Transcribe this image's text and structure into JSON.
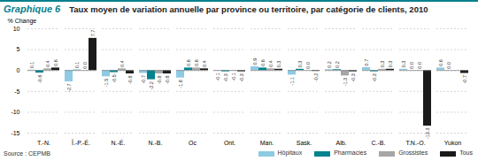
{
  "chart_data": {
    "type": "bar",
    "label": "Graphique 6",
    "title": "Taux moyen de variation annuelle par province ou territoire, par catégorie de clients, 2010",
    "y_label": "% Change",
    "source": "Source : CEPMB",
    "categories": [
      "T.-N.",
      "Î.-P.-É.",
      "N.-É.",
      "N.-B.",
      "Qc",
      "Ont.",
      "Man.",
      "Sask.",
      "Alb.",
      "C.-B.",
      "T.N.-O.",
      "Yukon"
    ],
    "series": [
      {
        "name": "Hôpitaux",
        "color": "#8ecae3",
        "values": [
          0.1,
          -2.7,
          -1.5,
          -0.7,
          -1.8,
          -0.1,
          0.9,
          -1.1,
          0.2,
          0.7,
          0.3,
          0.6
        ],
        "value_labels": [
          "0.1",
          "-2.7",
          "-1.5",
          "-0.7",
          "-1.8",
          "-0.1",
          "0.9",
          "-1.1",
          "0.2",
          "0.7",
          "0.3",
          "0.6"
        ]
      },
      {
        "name": "Pharmacies",
        "color": "#00828f",
        "values": [
          -0.6,
          0.1,
          -0.5,
          -2.2,
          0.6,
          -0.3,
          0.6,
          0.3,
          0.2,
          -0.3,
          0.0,
          0.0
        ],
        "value_labels": [
          "-0.6",
          "0.1",
          "-0.5",
          "-2.2",
          "0.6",
          "-0.3",
          "0.6",
          "0.3",
          "0.2",
          "-0.3",
          "0.0",
          "0.0"
        ]
      },
      {
        "name": "Grossistes",
        "color": "#a6a6a6",
        "values": [
          0.4,
          0.0,
          0.4,
          -0.8,
          0.6,
          -0.1,
          0.4,
          0.0,
          -1.3,
          0.3,
          0.0,
          null
        ],
        "value_labels": [
          "0.4",
          "0.0",
          "0.4",
          "-0.8",
          "0.6",
          "-0.1",
          "0.4",
          "0.0",
          "-1.3",
          "0.3",
          "0.0",
          null
        ]
      },
      {
        "name": "Tous",
        "color": "#1a1a1a",
        "values": [
          0.6,
          7.7,
          -0.8,
          -0.8,
          0.4,
          -0.3,
          0.3,
          -0.2,
          -0.3,
          0.3,
          -13.3,
          -0.7
        ],
        "value_labels": [
          "0.6",
          "7.7",
          "-0.8",
          "-0.8",
          "0.4",
          "-0.3",
          "0.3",
          "-0.2",
          "-0.3",
          "0.3",
          "-13.3",
          "-0.7"
        ]
      }
    ],
    "ylim": [
      -15,
      10
    ],
    "yticks": [
      -15,
      -10,
      -5,
      0,
      5,
      10
    ],
    "grid": true,
    "data_labels": true,
    "legend": "bottom-right"
  }
}
